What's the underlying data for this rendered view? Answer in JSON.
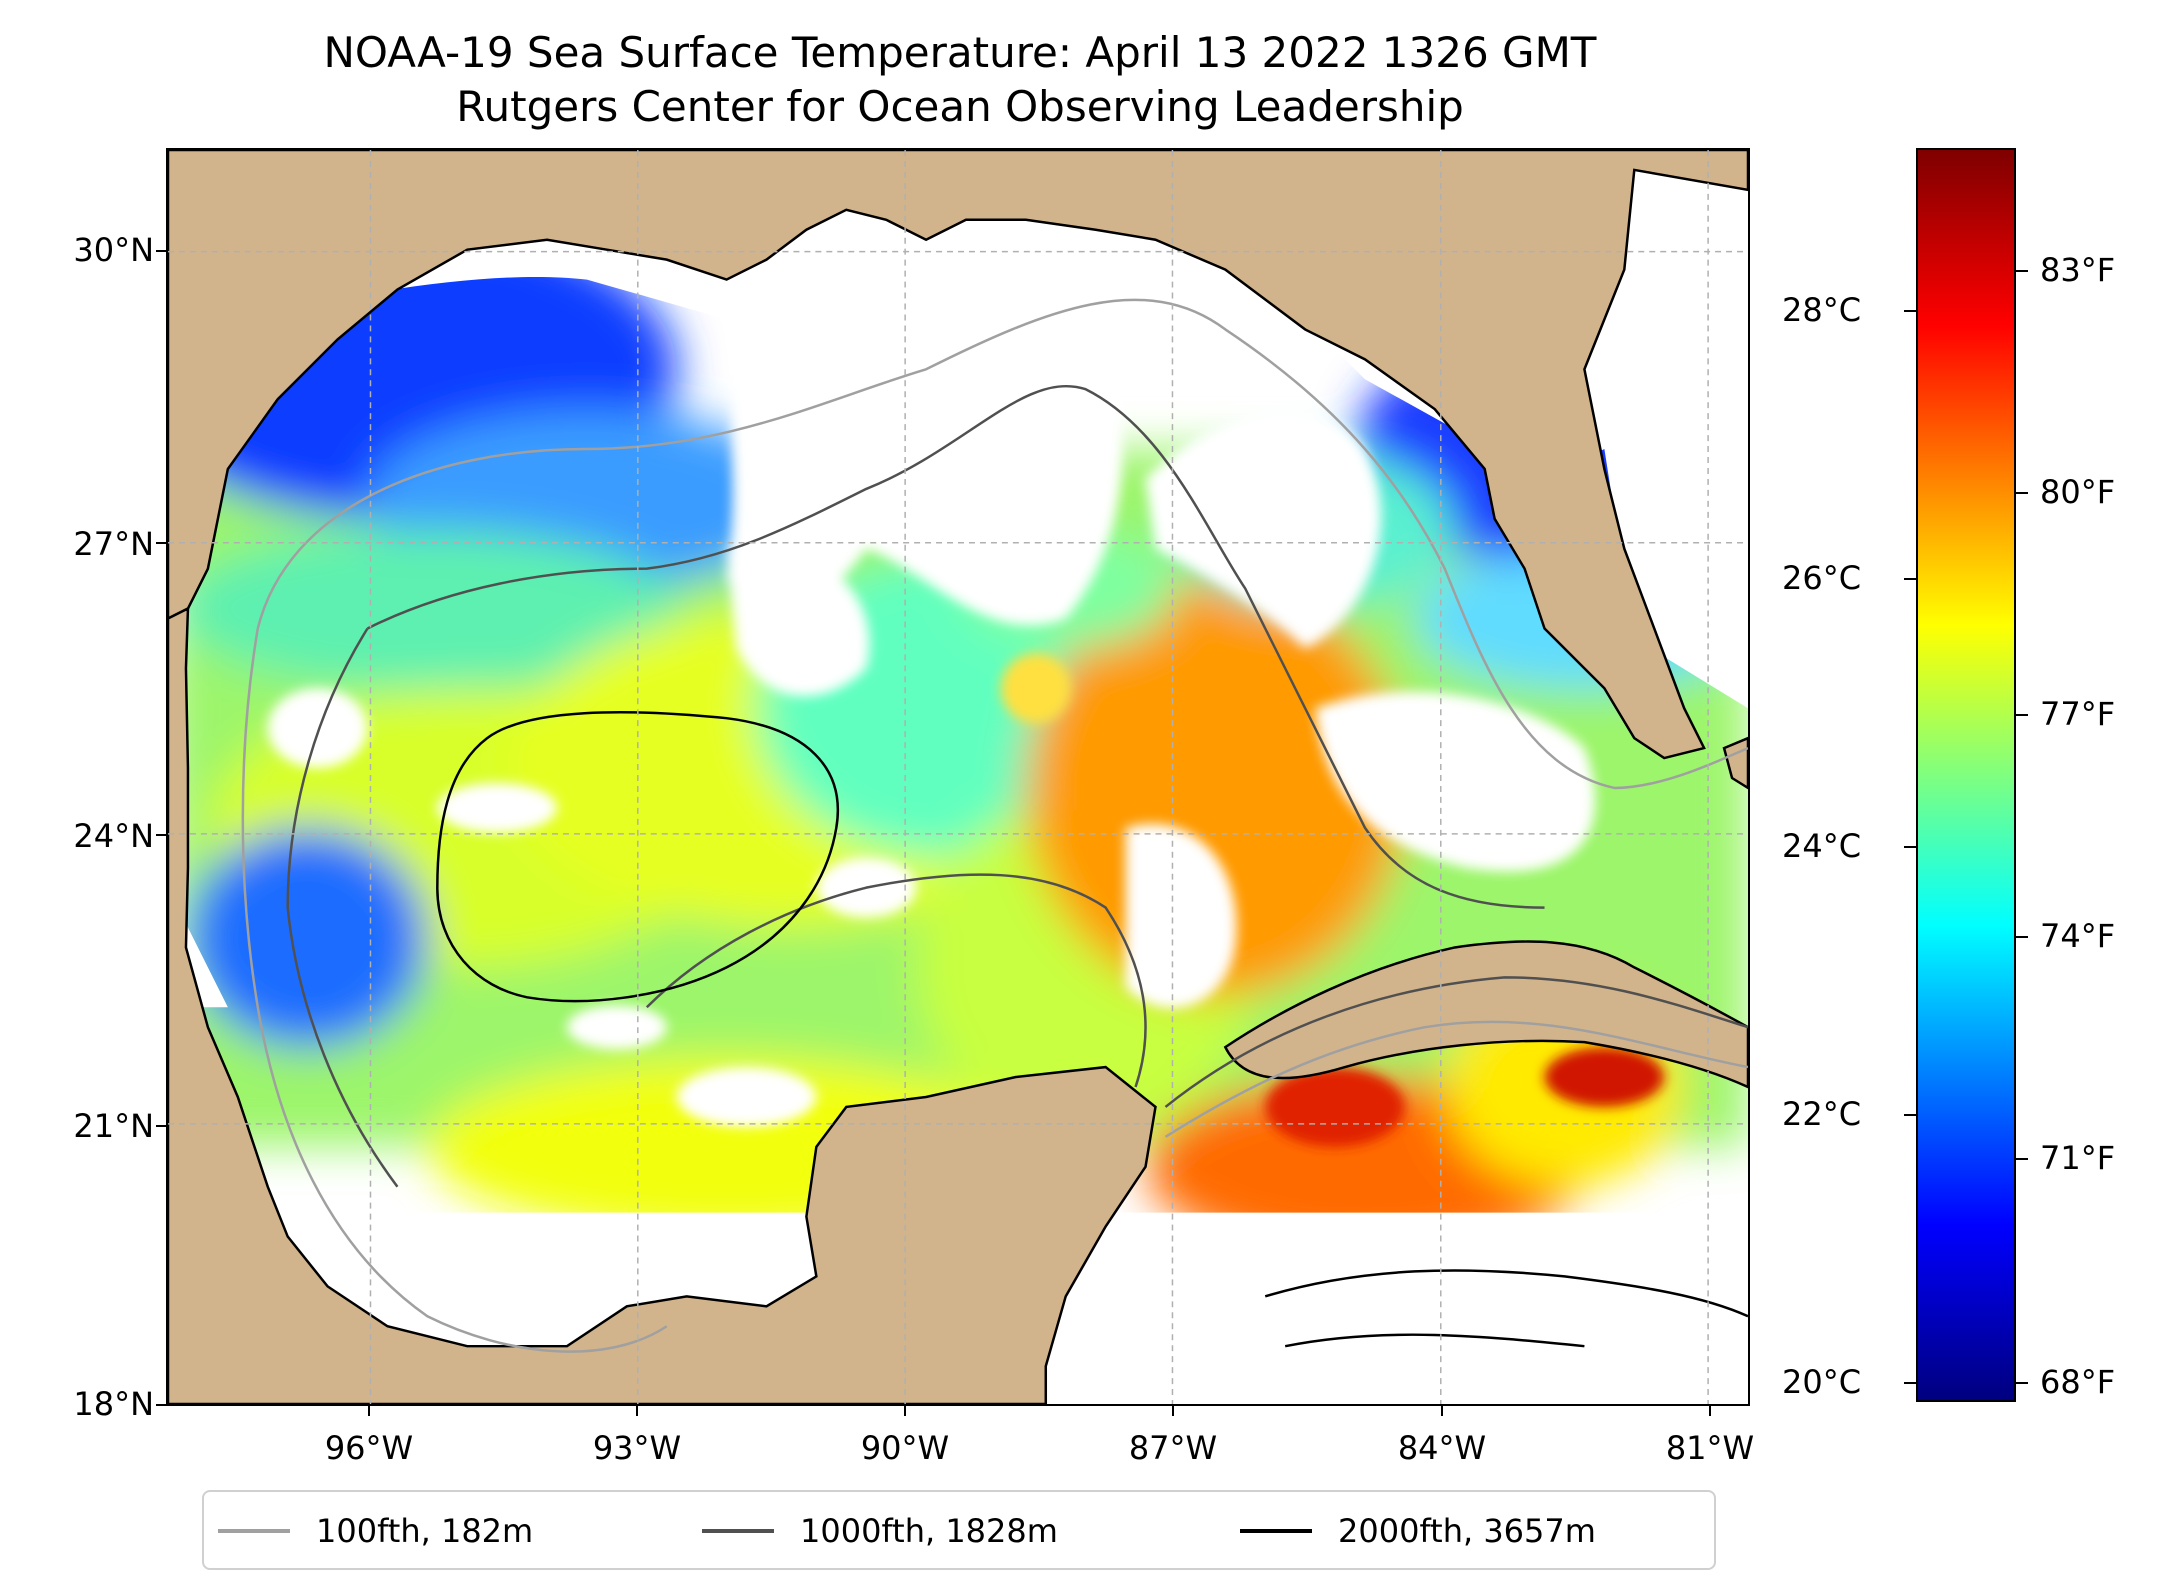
{
  "title": {
    "line1": "NOAA-19 Sea Surface Temperature: April 13 2022 1326 GMT",
    "line2": "Rutgers Center for Ocean Observing Leadership"
  },
  "map": {
    "lat_labels": [
      "30°N",
      "27°N",
      "24°N",
      "21°N",
      "18°N"
    ],
    "lon_labels": [
      "96°W",
      "93°W",
      "90°W",
      "87°W",
      "84°W",
      "81°W"
    ],
    "lat_range": [
      18,
      31
    ],
    "lon_range": [
      -98.3,
      -80.6
    ],
    "colors": {
      "land": "#d2b48c",
      "no_data": "#ffffff",
      "coast": "#000000",
      "grid": "#b0b0b0"
    }
  },
  "colorbar": {
    "colormap": "jet",
    "celsius_labels": [
      "28°C",
      "26°C",
      "24°C",
      "22°C",
      "20°C"
    ],
    "fahrenheit_labels": [
      "83°F",
      "80°F",
      "77°F",
      "74°F",
      "71°F",
      "68°F"
    ]
  },
  "legend": {
    "items": [
      {
        "label": "100fth, 182m",
        "color": "#a0a0a0"
      },
      {
        "label": "1000fth, 1828m",
        "color": "#505050"
      },
      {
        "label": "2000fth, 3657m",
        "color": "#000000"
      }
    ]
  }
}
